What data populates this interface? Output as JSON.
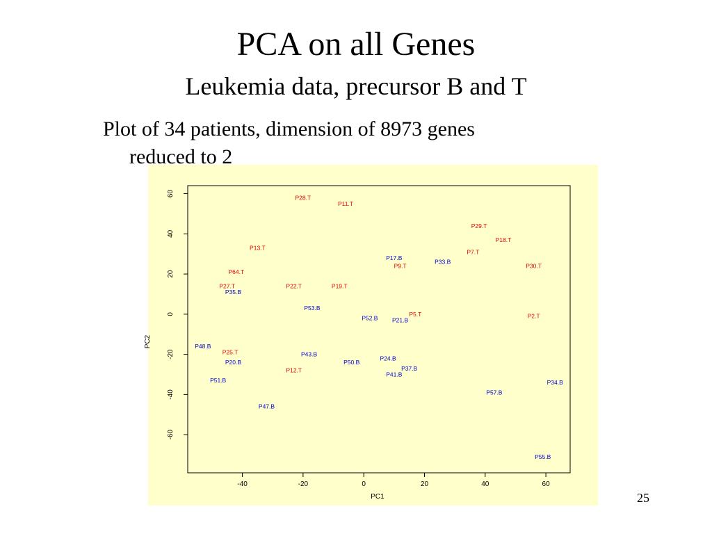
{
  "slide": {
    "title": "PCA on all Genes",
    "subtitle": "Leukemia data, precursor B and T",
    "bullet_line1": "Plot of 34 patients, dimension of 8973 genes",
    "bullet_line2": "reduced to 2",
    "page_number": "25",
    "panel_color": "#ffffcc"
  },
  "chart_data": {
    "type": "scatter",
    "title": "",
    "xlabel": "PC1",
    "ylabel": "PC2",
    "xlim": [
      -58,
      68
    ],
    "ylim": [
      -79,
      64
    ],
    "xticks": [
      -40,
      -20,
      0,
      20,
      40,
      60
    ],
    "yticks": [
      -60,
      -40,
      -20,
      0,
      20,
      40,
      60
    ],
    "grid": false,
    "legend": "none",
    "series": [
      {
        "color": "#e00000",
        "points": [
          {
            "label": "P28.T",
            "x": -20,
            "y": 58
          },
          {
            "label": "P11.T",
            "x": -6,
            "y": 55
          },
          {
            "label": "P29.T",
            "x": 38,
            "y": 44
          },
          {
            "label": "P18.T",
            "x": 46,
            "y": 37
          },
          {
            "label": "P13.T",
            "x": -35,
            "y": 33
          },
          {
            "label": "P7.T",
            "x": 36,
            "y": 31
          },
          {
            "label": "P9.T",
            "x": 12,
            "y": 24
          },
          {
            "label": "P30.T",
            "x": 56,
            "y": 24
          },
          {
            "label": "P64.T",
            "x": -42,
            "y": 21
          },
          {
            "label": "P27.T",
            "x": -45,
            "y": 14
          },
          {
            "label": "P22.T",
            "x": -23,
            "y": 14
          },
          {
            "label": "P19.T",
            "x": -8,
            "y": 14
          },
          {
            "label": "P5.T",
            "x": 17,
            "y": 0
          },
          {
            "label": "P2.T",
            "x": 56,
            "y": -1
          },
          {
            "label": "P25.T",
            "x": -44,
            "y": -19
          },
          {
            "label": "P12.T",
            "x": -23,
            "y": -28
          }
        ]
      },
      {
        "color": "#0000d0",
        "points": [
          {
            "label": "P17.B",
            "x": 10,
            "y": 28
          },
          {
            "label": "P33.B",
            "x": 26,
            "y": 26
          },
          {
            "label": "P35.B",
            "x": -43,
            "y": 11
          },
          {
            "label": "P53.B",
            "x": -17,
            "y": 3
          },
          {
            "label": "P52.B",
            "x": 2,
            "y": -2
          },
          {
            "label": "P21.B",
            "x": 12,
            "y": -3
          },
          {
            "label": "P48.B",
            "x": -53,
            "y": -16
          },
          {
            "label": "P43.B",
            "x": -18,
            "y": -20
          },
          {
            "label": "P24.B",
            "x": 8,
            "y": -22
          },
          {
            "label": "P20.B",
            "x": -43,
            "y": -24
          },
          {
            "label": "P50.B",
            "x": -4,
            "y": -24
          },
          {
            "label": "P37.B",
            "x": 15,
            "y": -27
          },
          {
            "label": "P41.B",
            "x": 10,
            "y": -30
          },
          {
            "label": "P51.B",
            "x": -48,
            "y": -33
          },
          {
            "label": "P34.B",
            "x": 63,
            "y": -34
          },
          {
            "label": "P57.B",
            "x": 43,
            "y": -39
          },
          {
            "label": "P47.B",
            "x": -32,
            "y": -46
          },
          {
            "label": "P55.B",
            "x": 59,
            "y": -71
          }
        ]
      }
    ]
  }
}
